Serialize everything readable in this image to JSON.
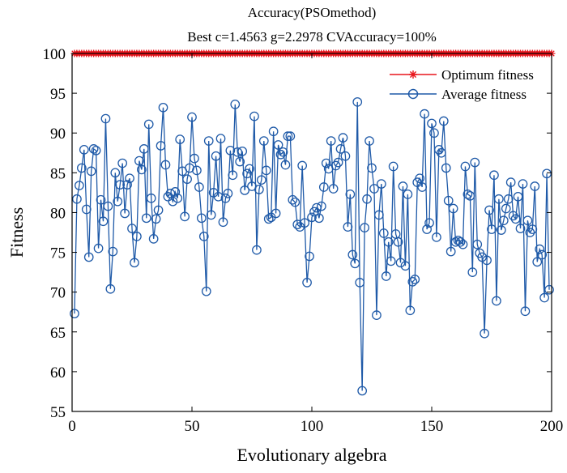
{
  "chart_data": {
    "type": "line",
    "title": "Accuracy(PSOmethod)",
    "subtitle": "Best c=1.4563 g=2.2978 CVAccuracy=100%",
    "xlabel": "Evolutionary algebra",
    "ylabel": "Fitness",
    "xlim": [
      0,
      200
    ],
    "ylim": [
      55,
      100
    ],
    "xticks": [
      0,
      50,
      100,
      150,
      200
    ],
    "yticks": [
      55,
      60,
      65,
      70,
      75,
      80,
      85,
      90,
      95,
      100
    ],
    "grid": false,
    "legend_position": "top-right",
    "series": [
      {
        "name": "Optimum fitness",
        "color": "#e8151c",
        "marker": "star",
        "values": [
          100,
          100,
          100,
          100,
          100,
          100,
          100,
          100,
          100,
          100,
          100,
          100,
          100,
          100,
          100,
          100,
          100,
          100,
          100,
          100,
          100,
          100,
          100,
          100,
          100,
          100,
          100,
          100,
          100,
          100,
          100,
          100,
          100,
          100,
          100,
          100,
          100,
          100,
          100,
          100,
          100,
          100,
          100,
          100,
          100,
          100,
          100,
          100,
          100,
          100,
          100,
          100,
          100,
          100,
          100,
          100,
          100,
          100,
          100,
          100,
          100,
          100,
          100,
          100,
          100,
          100,
          100,
          100,
          100,
          100,
          100,
          100,
          100,
          100,
          100,
          100,
          100,
          100,
          100,
          100,
          100,
          100,
          100,
          100,
          100,
          100,
          100,
          100,
          100,
          100,
          100,
          100,
          100,
          100,
          100,
          100,
          100,
          100,
          100,
          100,
          100,
          100,
          100,
          100,
          100,
          100,
          100,
          100,
          100,
          100,
          100,
          100,
          100,
          100,
          100,
          100,
          100,
          100,
          100,
          100,
          100,
          100,
          100,
          100,
          100,
          100,
          100,
          100,
          100,
          100,
          100,
          100,
          100,
          100,
          100,
          100,
          100,
          100,
          100,
          100,
          100,
          100,
          100,
          100,
          100,
          100,
          100,
          100,
          100,
          100,
          100,
          100,
          100,
          100,
          100,
          100,
          100,
          100,
          100,
          100,
          100,
          100,
          100,
          100,
          100,
          100,
          100,
          100,
          100,
          100,
          100,
          100,
          100,
          100,
          100,
          100,
          100,
          100,
          100,
          100,
          100,
          100,
          100,
          100,
          100,
          100,
          100,
          100,
          100,
          100,
          100,
          100,
          100,
          100,
          100,
          100,
          100,
          100,
          100,
          100
        ]
      },
      {
        "name": "Average fitness",
        "color": "#1f5aa8",
        "marker": "circle",
        "values": [
          67.3,
          81.7,
          83.4,
          85.6,
          87.9,
          80.4,
          74.4,
          85.2,
          88.0,
          87.8,
          75.5,
          81.6,
          78.9,
          91.8,
          80.8,
          70.4,
          75.1,
          85.0,
          81.4,
          83.5,
          86.2,
          79.9,
          83.5,
          84.3,
          78.0,
          73.7,
          77.0,
          86.5,
          85.4,
          88.0,
          79.3,
          91.1,
          81.8,
          76.7,
          79.2,
          80.3,
          88.4,
          93.2,
          86.0,
          82.0,
          82.4,
          81.4,
          82.6,
          81.8,
          89.2,
          85.2,
          79.5,
          84.2,
          85.6,
          92.0,
          86.8,
          85.3,
          83.2,
          79.3,
          77.0,
          70.1,
          89.0,
          79.7,
          82.5,
          87.1,
          82.0,
          89.3,
          78.8,
          81.8,
          82.4,
          87.8,
          84.7,
          93.6,
          87.6,
          86.4,
          87.7,
          82.8,
          84.9,
          85.5,
          83.3,
          92.1,
          75.3,
          82.9,
          84.1,
          89.0,
          85.3,
          79.2,
          79.4,
          90.2,
          79.9,
          88.5,
          87.3,
          87.6,
          86.0,
          89.6,
          89.6,
          81.6,
          81.3,
          78.5,
          78.2,
          85.9,
          78.7,
          71.2,
          74.5,
          79.4,
          80.1,
          80.6,
          79.3,
          80.8,
          83.2,
          86.2,
          85.5,
          89.0,
          83.0,
          85.9,
          86.3,
          88.0,
          89.4,
          87.1,
          78.2,
          82.3,
          74.7,
          73.6,
          93.9,
          71.2,
          57.6,
          78.1,
          81.7,
          89.0,
          85.6,
          83.0,
          67.1,
          79.7,
          83.6,
          77.4,
          72.0,
          76.3,
          73.9,
          85.8,
          77.3,
          76.3,
          73.7,
          83.3,
          73.3,
          82.3,
          67.7,
          71.3,
          71.6,
          83.8,
          84.3,
          83.2,
          92.4,
          77.9,
          78.7,
          91.2,
          90.0,
          76.9,
          87.9,
          87.5,
          91.5,
          85.6,
          81.5,
          75.1,
          80.5,
          76.3,
          76.5,
          76.3,
          76.0,
          85.8,
          82.3,
          82.1,
          72.5,
          86.3,
          76.0,
          74.9,
          74.4,
          64.8,
          74.0,
          80.3,
          77.9,
          84.7,
          68.9,
          81.7,
          77.8,
          79.0,
          80.5,
          81.7,
          83.8,
          79.6,
          79.2,
          82.0,
          78.0,
          83.6,
          67.6,
          79.0,
          77.5,
          77.9,
          83.3,
          73.8,
          75.4,
          74.7,
          69.3,
          84.9,
          70.3
        ]
      }
    ]
  }
}
